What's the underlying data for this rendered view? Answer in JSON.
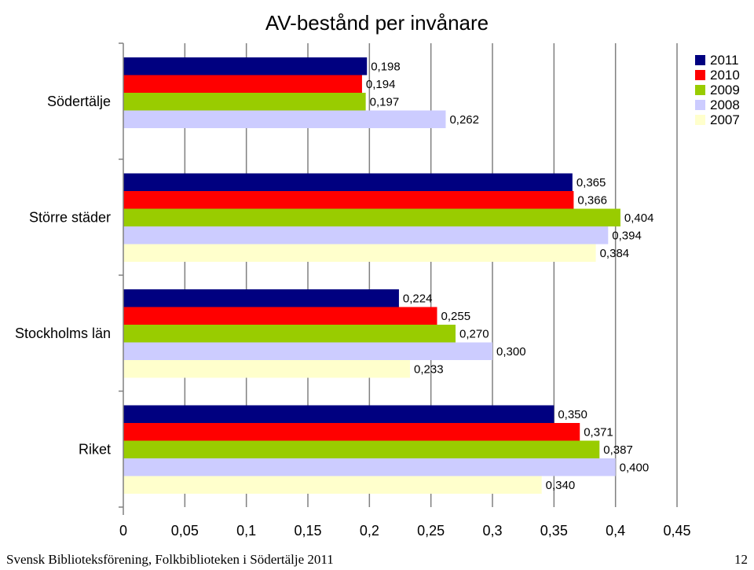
{
  "chart_data": {
    "type": "bar",
    "orientation": "horizontal",
    "title": "AV-bestånd per invånare",
    "categories": [
      "Södertälje",
      "Större städer",
      "Stockholms län",
      "Riket"
    ],
    "series": [
      {
        "name": "2011",
        "color": "#000080",
        "values": [
          0.198,
          0.365,
          0.224,
          0.35
        ],
        "labels": [
          "0,198",
          "0,365",
          "0,224",
          "0,350"
        ]
      },
      {
        "name": "2010",
        "color": "#FF0000",
        "values": [
          0.194,
          0.366,
          0.255,
          0.371
        ],
        "labels": [
          "0,194",
          "0,366",
          "0,255",
          "0,371"
        ]
      },
      {
        "name": "2009",
        "color": "#99CC00",
        "values": [
          0.197,
          0.404,
          0.27,
          0.387
        ],
        "labels": [
          "0,197",
          "0,404",
          "0,270",
          "0,387"
        ]
      },
      {
        "name": "2008",
        "color": "#CCCCFF",
        "values": [
          0.262,
          0.394,
          0.3,
          0.4
        ],
        "labels": [
          "0,262",
          "0,394",
          "0,300",
          "0,400"
        ]
      },
      {
        "name": "2007",
        "color": "#FFFFCC",
        "values": [
          null,
          0.384,
          0.233,
          0.34
        ],
        "labels": [
          "",
          "0,384",
          "0,233",
          "0,340"
        ]
      }
    ],
    "xlim": [
      0,
      0.45
    ],
    "xticks": [
      0,
      0.05,
      0.1,
      0.15,
      0.2,
      0.25,
      0.3,
      0.35,
      0.4,
      0.45
    ],
    "xtick_labels": [
      "0",
      "0,05",
      "0,1",
      "0,15",
      "0,2",
      "0,25",
      "0,3",
      "0,35",
      "0,4",
      "0,45"
    ],
    "grid": "vertical",
    "gridline_color": "#808080",
    "legend_position": "top-right"
  },
  "footer": {
    "left": "Svensk Biblioteksförening, Folkbiblioteken i Södertälje 2011",
    "right": "12"
  }
}
